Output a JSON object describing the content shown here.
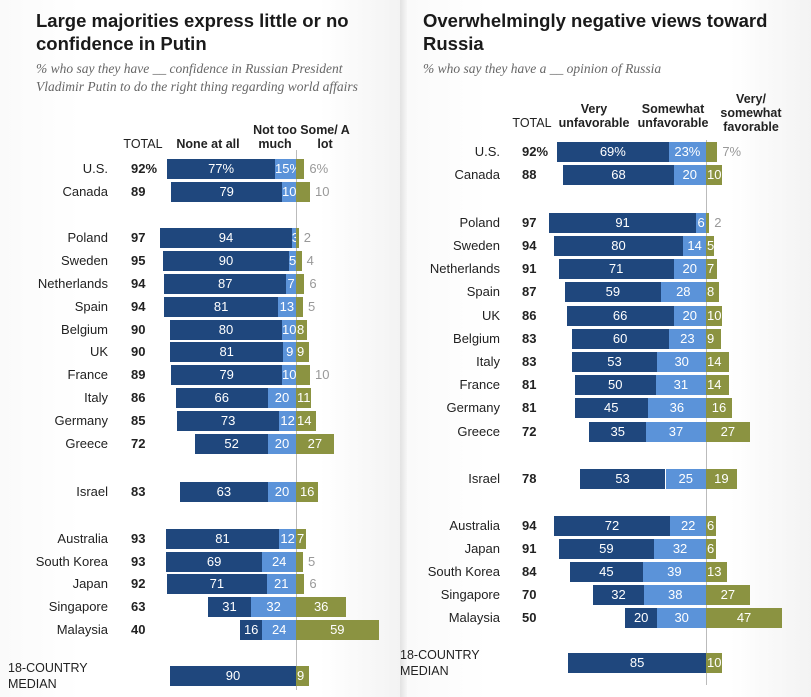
{
  "colors": {
    "none_very_unfav": "#1f477d",
    "not_too_much_somewhat_unfav": "#5b93d9",
    "some_fav": "#8b9341"
  },
  "left": {
    "title": "Large majorities express little or no confidence in Putin",
    "subtitle": "% who say they have __ confidence in Russian President Vladimir Putin to do the right thing regarding world affairs",
    "headers": {
      "total": "TOTAL",
      "a": "None at all",
      "b": "Not too much",
      "c": "Some/ A lot"
    }
  },
  "right": {
    "title": "Overwhelmingly negative views toward Russia",
    "subtitle": "% who say they have a __ opinion of Russia",
    "headers": {
      "total": "TOTAL",
      "a": "Very unfavorable",
      "b": "Somewhat unfavorable",
      "c": "Very/ somewhat favorable"
    }
  },
  "chart_data": [
    {
      "type": "bar",
      "orientation": "horizontal",
      "stacked": "diverging",
      "series_names": [
        "None at all",
        "Not too much",
        "Some/A lot"
      ],
      "rows": [
        {
          "country": "U.S.",
          "total": "92%",
          "values": [
            77,
            15,
            6
          ],
          "labels": [
            "77%",
            "15%",
            "6%"
          ],
          "fav_outside": true
        },
        {
          "country": "Canada",
          "total": "89",
          "values": [
            79,
            10,
            10
          ],
          "fav_outside": true
        },
        {
          "country": "Poland",
          "total": "97",
          "values": [
            94,
            3,
            2
          ],
          "fav_outside": true,
          "gap": true
        },
        {
          "country": "Sweden",
          "total": "95",
          "values": [
            90,
            5,
            4
          ],
          "fav_outside": true
        },
        {
          "country": "Netherlands",
          "total": "94",
          "values": [
            87,
            7,
            6
          ],
          "fav_outside": true
        },
        {
          "country": "Spain",
          "total": "94",
          "values": [
            81,
            13,
            5
          ],
          "fav_outside": true
        },
        {
          "country": "Belgium",
          "total": "90",
          "values": [
            80,
            10,
            8
          ]
        },
        {
          "country": "UK",
          "total": "90",
          "values": [
            81,
            9,
            9
          ]
        },
        {
          "country": "France",
          "total": "89",
          "values": [
            79,
            10,
            10
          ],
          "fav_outside": true
        },
        {
          "country": "Italy",
          "total": "86",
          "values": [
            66,
            20,
            11
          ]
        },
        {
          "country": "Germany",
          "total": "85",
          "values": [
            73,
            12,
            14
          ]
        },
        {
          "country": "Greece",
          "total": "72",
          "values": [
            52,
            20,
            27
          ]
        },
        {
          "country": "Israel",
          "total": "83",
          "values": [
            63,
            20,
            16
          ],
          "gap": true
        },
        {
          "country": "Australia",
          "total": "93",
          "values": [
            81,
            12,
            7
          ],
          "gap": true
        },
        {
          "country": "South Korea",
          "total": "93",
          "values": [
            69,
            24,
            5
          ],
          "fav_outside": true
        },
        {
          "country": "Japan",
          "total": "92",
          "values": [
            71,
            21,
            6
          ],
          "fav_outside": true
        },
        {
          "country": "Singapore",
          "total": "63",
          "values": [
            31,
            32,
            36
          ]
        },
        {
          "country": "Malaysia",
          "total": "40",
          "values": [
            16,
            24,
            59
          ]
        },
        {
          "country": "18-COUNTRY MEDIAN",
          "total": "",
          "values": [
            90,
            null,
            9
          ],
          "gap": true,
          "median": true
        }
      ]
    },
    {
      "type": "bar",
      "orientation": "horizontal",
      "stacked": "diverging",
      "series_names": [
        "Very unfavorable",
        "Somewhat unfavorable",
        "Very/somewhat favorable"
      ],
      "rows": [
        {
          "country": "U.S.",
          "total": "92%",
          "values": [
            69,
            23,
            7
          ],
          "labels": [
            "69%",
            "23%",
            "7%"
          ],
          "fav_outside": true
        },
        {
          "country": "Canada",
          "total": "88",
          "values": [
            68,
            20,
            10
          ]
        },
        {
          "country": "Poland",
          "total": "97",
          "values": [
            91,
            6,
            2
          ],
          "fav_outside": true,
          "gap": true
        },
        {
          "country": "Sweden",
          "total": "94",
          "values": [
            80,
            14,
            5
          ]
        },
        {
          "country": "Netherlands",
          "total": "91",
          "values": [
            71,
            20,
            7
          ]
        },
        {
          "country": "Spain",
          "total": "87",
          "values": [
            59,
            28,
            8
          ]
        },
        {
          "country": "UK",
          "total": "86",
          "values": [
            66,
            20,
            10
          ]
        },
        {
          "country": "Belgium",
          "total": "83",
          "values": [
            60,
            23,
            9
          ]
        },
        {
          "country": "Italy",
          "total": "83",
          "values": [
            53,
            30,
            14
          ]
        },
        {
          "country": "France",
          "total": "81",
          "values": [
            50,
            31,
            14
          ]
        },
        {
          "country": "Germany",
          "total": "81",
          "values": [
            45,
            36,
            16
          ]
        },
        {
          "country": "Greece",
          "total": "72",
          "values": [
            35,
            37,
            27
          ]
        },
        {
          "country": "Israel",
          "total": "78",
          "values": [
            53,
            25,
            19
          ],
          "gap": true
        },
        {
          "country": "Australia",
          "total": "94",
          "values": [
            72,
            22,
            6
          ],
          "gap": true
        },
        {
          "country": "Japan",
          "total": "91",
          "values": [
            59,
            32,
            6
          ]
        },
        {
          "country": "South Korea",
          "total": "84",
          "values": [
            45,
            39,
            13
          ]
        },
        {
          "country": "Singapore",
          "total": "70",
          "values": [
            32,
            38,
            27
          ]
        },
        {
          "country": "Malaysia",
          "total": "50",
          "values": [
            20,
            30,
            47
          ]
        },
        {
          "country": "18-COUNTRY MEDIAN",
          "total": "",
          "values": [
            85,
            null,
            10
          ],
          "gap": true,
          "median": true
        }
      ]
    }
  ]
}
